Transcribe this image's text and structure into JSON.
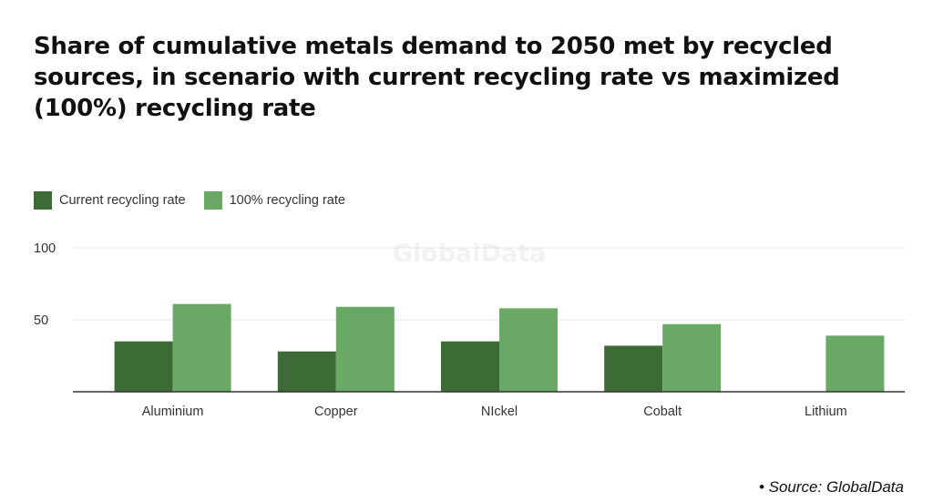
{
  "chart_data": {
    "type": "bar",
    "title": "Share of cumulative metals demand to 2050 met by recycled sources, in scenario with current recycling rate vs maximized (100%) recycling rate",
    "categories": [
      "Aluminium",
      "Copper",
      "NIckel",
      "Cobalt",
      "Lithium"
    ],
    "series": [
      {
        "name": "Current recycling rate",
        "color": "#3d6b35",
        "values": [
          35,
          28,
          35,
          32,
          0
        ]
      },
      {
        "name": "100% recycling rate",
        "color": "#6aa865",
        "values": [
          61,
          59,
          58,
          47,
          39
        ]
      }
    ],
    "ylim": [
      0,
      100
    ],
    "yticks": [
      50,
      100
    ],
    "grid": true,
    "legend": "top-left",
    "watermark": "GlobalData"
  },
  "source": "• Source: GlobalData"
}
